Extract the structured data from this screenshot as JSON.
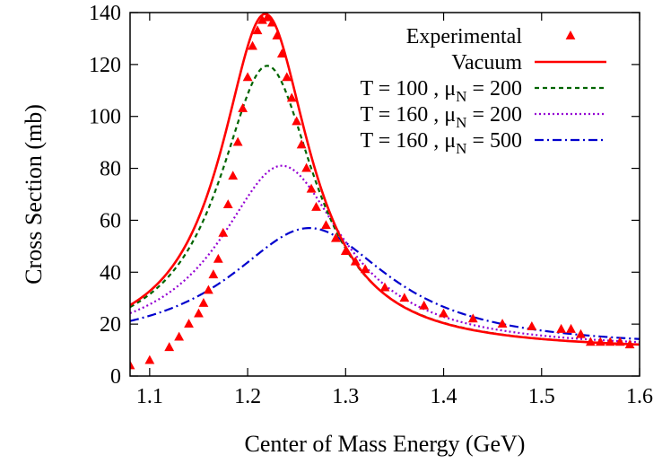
{
  "chart_data": {
    "type": "line",
    "xlabel": "Center of Mass Energy (GeV)",
    "ylabel": "Cross Section (mb)",
    "xlim": [
      1.08,
      1.6
    ],
    "ylim": [
      0,
      140
    ],
    "xticks": [
      1.1,
      1.2,
      1.3,
      1.4,
      1.5,
      1.6
    ],
    "xtick_labels": [
      "1.1",
      "1.2",
      "1.3",
      "1.4",
      "1.5",
      "1.6"
    ],
    "yticks": [
      0,
      20,
      40,
      60,
      80,
      100,
      120,
      140
    ],
    "ytick_labels": [
      "0",
      "20",
      "40",
      "60",
      "80",
      "100",
      "120",
      "140"
    ],
    "grid": false,
    "legend_position": "top-right",
    "series": [
      {
        "name": "Experimental",
        "kind": "scatter",
        "marker": "triangle",
        "color": "#ff0000",
        "x": [
          1.08,
          1.1,
          1.12,
          1.13,
          1.14,
          1.15,
          1.155,
          1.16,
          1.165,
          1.17,
          1.175,
          1.18,
          1.185,
          1.19,
          1.195,
          1.2,
          1.205,
          1.21,
          1.215,
          1.22,
          1.225,
          1.23,
          1.235,
          1.24,
          1.245,
          1.25,
          1.255,
          1.26,
          1.265,
          1.27,
          1.28,
          1.29,
          1.3,
          1.31,
          1.32,
          1.34,
          1.36,
          1.38,
          1.4,
          1.43,
          1.46,
          1.49,
          1.52,
          1.53,
          1.54,
          1.55,
          1.56,
          1.57,
          1.58,
          1.59
        ],
        "y": [
          4,
          6,
          11,
          15,
          20,
          24,
          28,
          33,
          39,
          45,
          55,
          66,
          77,
          90,
          103,
          115,
          127,
          133,
          137,
          138,
          136,
          131,
          124,
          115,
          107,
          98,
          89,
          80,
          72,
          65,
          58,
          53,
          48,
          44,
          41,
          34,
          30,
          27,
          24,
          22,
          20,
          19,
          18,
          18,
          16,
          13,
          13,
          13,
          13,
          12
        ]
      },
      {
        "name": "Vacuum",
        "kind": "line",
        "color": "#ff0000",
        "dash": "solid",
        "peak": 1.218,
        "gamma": 0.11,
        "amplitude": 130,
        "background": 9.5
      },
      {
        "name": "T = 100 , μ_N = 200",
        "label_main": "T = 100 , μ",
        "label_sub": "N",
        "label_tail": " = 200",
        "kind": "line",
        "color": "#006400",
        "dash": "dashed",
        "peak": 1.22,
        "gamma": 0.12,
        "amplitude": 110,
        "background": 9.5
      },
      {
        "name": "T = 160 , μ_N = 200",
        "label_main": "T = 160 , μ",
        "label_sub": "N",
        "label_tail": " = 200",
        "kind": "line",
        "color": "#9400d3",
        "dash": "dotted",
        "peak": 1.235,
        "gamma": 0.155,
        "amplitude": 71,
        "background": 10
      },
      {
        "name": "T = 160 , μ_N = 500",
        "label_main": "T = 160 , μ",
        "label_sub": "N",
        "label_tail": " = 500",
        "kind": "line",
        "color": "#0000cd",
        "dash": "dashdot",
        "peak": 1.263,
        "gamma": 0.2,
        "amplitude": 46.5,
        "background": 10.5
      }
    ]
  }
}
